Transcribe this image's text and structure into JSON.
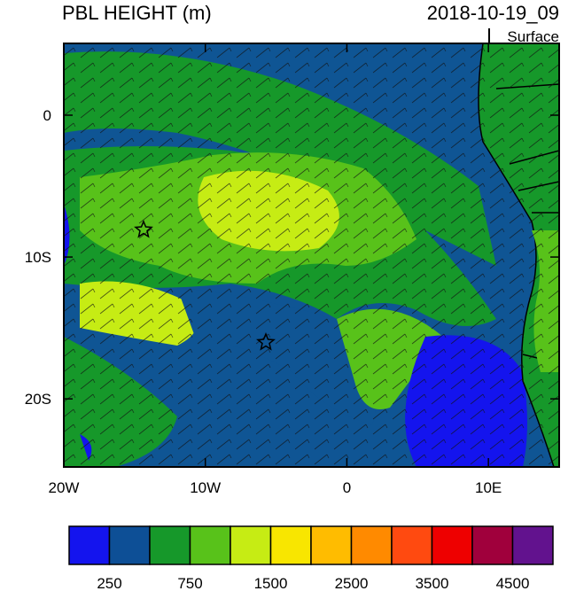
{
  "map": {
    "title": "PBL HEIGHT (m)",
    "time": "2018-10-19_09",
    "level": "Surface",
    "xlim": [
      -20,
      15
    ],
    "ylim": [
      -24.8,
      5.06
    ],
    "xticks": [
      {
        "value": -20,
        "label": "20W"
      },
      {
        "value": -10,
        "label": "10W"
      },
      {
        "value": 0,
        "label": "0"
      },
      {
        "value": 10,
        "label": "10E"
      }
    ],
    "yticks": [
      {
        "value": 0,
        "label": "0"
      },
      {
        "value": -10,
        "label": "10S"
      },
      {
        "value": -20,
        "label": "20S"
      }
    ],
    "colorbar": {
      "colors": [
        "#1414ee",
        "#0d4f96",
        "#16982a",
        "#58c21a",
        "#c6ec14",
        "#f8e600",
        "#ffbc00",
        "#ff8a00",
        "#ff4a10",
        "#ee0000",
        "#a0003c",
        "#62128e"
      ],
      "labels": [
        250,
        750,
        1500,
        2500,
        3500,
        4500
      ]
    }
  }
}
